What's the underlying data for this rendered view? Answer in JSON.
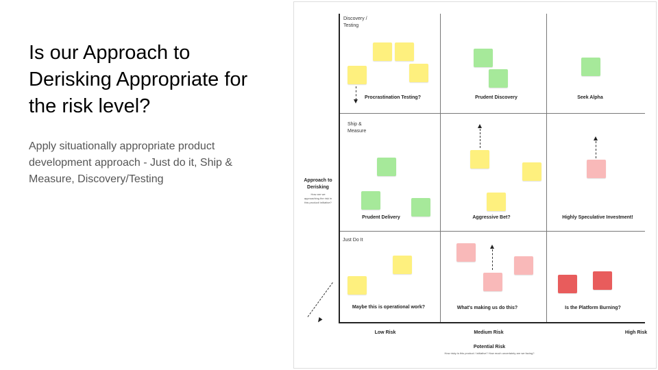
{
  "slide": {
    "title": "Is our Approach to Derisking Appropriate for the risk level?",
    "subtitle": "Apply situationally appropriate product development approach - Just do it, Ship & Measure, Discovery/Testing"
  },
  "matrix": {
    "y_axis": {
      "label": "Approach to Derisking",
      "question": "How are we approaching the risk in this product/ initiative?",
      "rows": [
        "Discovery / Testing",
        "Ship & Measure",
        "Just Do It"
      ]
    },
    "x_axis": {
      "label": "Potential Risk",
      "question": "How risky is this product / initiative? How much uncertainty are we facing?",
      "ticks": [
        "Low Risk",
        "Medium Risk",
        "High Risk"
      ]
    },
    "cells": [
      "Procrastination Testing?",
      "Prudent Discovery",
      "Seek Alpha",
      "Prudent Delivery",
      "Aggressive Bet?",
      "Highly Speculative Investment!",
      "Maybe this is operational work?",
      "What's making us do this?",
      "Is the Platform Burning?"
    ],
    "sticky_colors": {
      "yellow": "#fef07e",
      "green": "#a6e99a",
      "pink": "#f9b9b9",
      "red": "#e85c5c"
    }
  }
}
